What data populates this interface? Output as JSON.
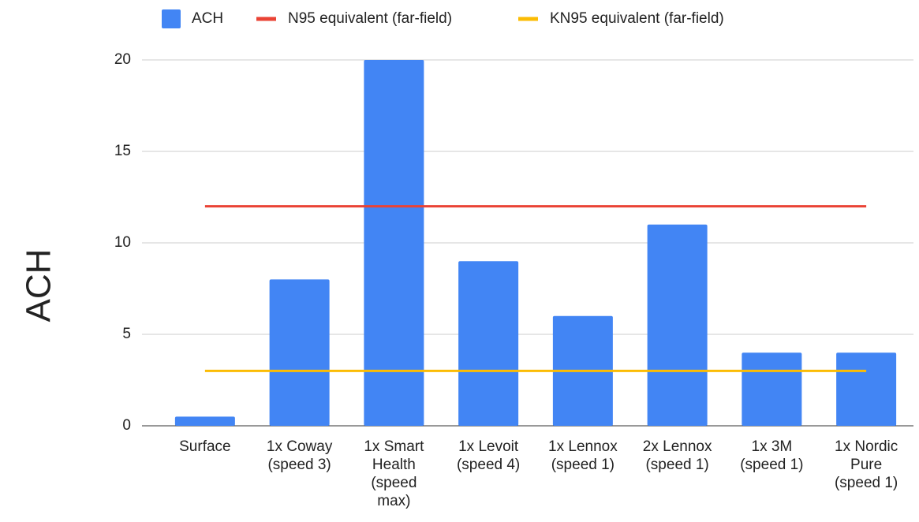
{
  "chart_data": {
    "type": "bar",
    "y_label": "ACH",
    "categories": [
      "Surface",
      "1x Coway (speed 3)",
      "1x Smart Health (speed max)",
      "1x Levoit (speed 4)",
      "1x Lennox (speed 1)",
      "2x Lennox (speed 1)",
      "1x 3M (speed 1)",
      "1x Nordic Pure (speed 1)"
    ],
    "series": [
      {
        "name": "ACH",
        "type": "bar",
        "color": "#4285f4",
        "values": [
          0.5,
          8,
          20,
          9,
          6,
          11,
          4,
          4
        ]
      },
      {
        "name": "N95 equivalent (far-field)",
        "type": "line",
        "color": "#ea4335",
        "values": [
          12,
          12,
          12,
          12,
          12,
          12,
          12,
          12
        ]
      },
      {
        "name": "KN95 equivalent (far-field)",
        "type": "line",
        "color": "#fbbc04",
        "values": [
          3,
          3,
          3,
          3,
          3,
          3,
          3,
          3
        ]
      }
    ],
    "ylim": [
      0,
      20
    ],
    "yticks": [
      0,
      5,
      10,
      15,
      20
    ],
    "grid": true,
    "legend": "top"
  }
}
